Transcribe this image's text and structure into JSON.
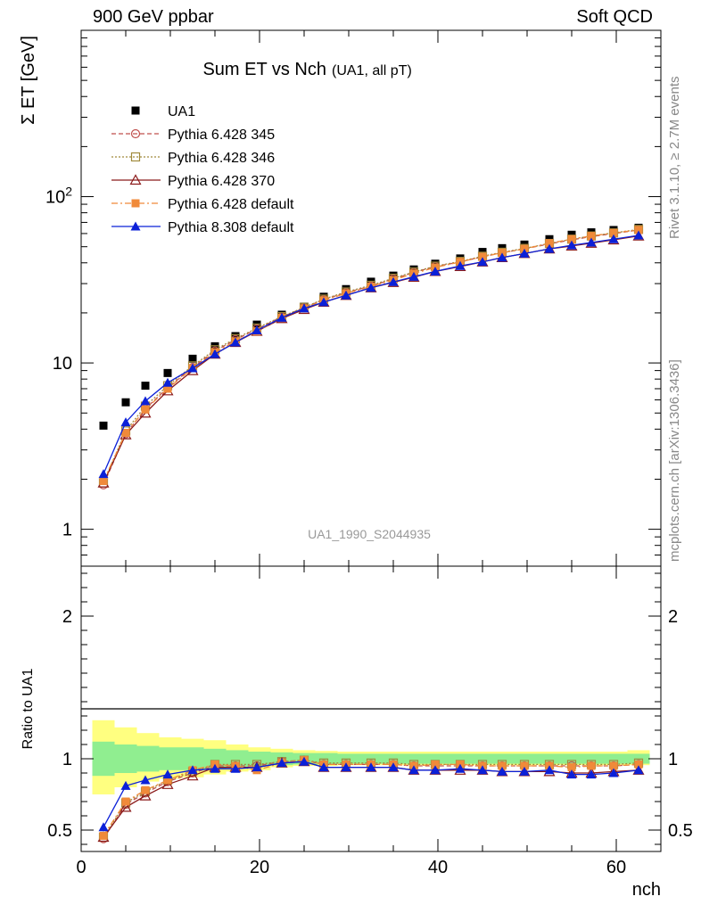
{
  "header": {
    "left_label": "900 GeV ppbar",
    "right_label": "Soft QCD"
  },
  "side_labels": {
    "rivet": "Rivet 3.1.10, ≥ 2.7M events",
    "mcplots": "mcplots.cern.ch [arXiv:1306.3436]"
  },
  "colors": {
    "UA1": "#000000",
    "p345": "#c0504d",
    "p346": "#a08a3c",
    "p370": "#8b1a1a",
    "pdef6": "#f08a3a",
    "pdef8": "#0b20d8",
    "band_green": "#90ee90",
    "band_yellow": "#ffff80"
  },
  "chart_data": [
    {
      "type": "scatter",
      "title": "Sum ET vs Nch",
      "title_suffix": "(UA1, all pT)",
      "ylabel": "Σ ET [GeV]",
      "watermark": "UA1_1990_S2044935",
      "yscale": "log",
      "xlim": [
        0,
        65
      ],
      "ylim": [
        0.6,
        1000
      ],
      "yticks": [
        1,
        10,
        100
      ],
      "ytick_labels": [
        "1",
        "10",
        "10²"
      ],
      "legend_position": "top-left",
      "x": [
        2.5,
        5,
        7.2,
        9.7,
        12.5,
        15,
        17.3,
        19.7,
        22.5,
        25,
        27.2,
        29.7,
        32.5,
        35,
        37.3,
        39.7,
        42.5,
        45,
        47.2,
        49.7,
        52.5,
        55,
        57.2,
        59.7,
        62.5
      ],
      "series": [
        {
          "name": "UA1",
          "marker": "square-filled",
          "line": "none",
          "color_key": "UA1",
          "values": [
            4.2,
            5.8,
            7.3,
            8.7,
            10.6,
            12.6,
            14.5,
            17.0,
            19.5,
            21.8,
            25.0,
            27.8,
            30.8,
            33.5,
            36.5,
            39.5,
            42.5,
            46.5,
            49.0,
            51.5,
            55.5,
            59.0,
            61.0,
            63.0,
            65.0
          ]
        },
        {
          "name": "Pythia 6.428 345",
          "marker": "circle-open",
          "line": "dashed",
          "color_key": "p345",
          "values": [
            1.85,
            3.75,
            5.3,
            7.1,
            9.4,
            11.8,
            13.8,
            16.0,
            18.9,
            21.5,
            24.0,
            26.5,
            29.0,
            32.0,
            35.0,
            38.0,
            40.5,
            43.5,
            46.0,
            48.5,
            52.0,
            55.0,
            57.5,
            60.0,
            63.0
          ]
        },
        {
          "name": "Pythia 6.428 346",
          "marker": "square-open",
          "line": "dotted",
          "color_key": "p346",
          "values": [
            1.9,
            3.9,
            5.5,
            7.3,
            9.6,
            12.0,
            14.0,
            16.2,
            19.0,
            21.6,
            24.2,
            26.7,
            29.3,
            32.3,
            35.2,
            38.2,
            40.8,
            43.8,
            46.3,
            48.8,
            52.3,
            55.5,
            58.0,
            60.5,
            63.5
          ]
        },
        {
          "name": "Pythia 6.428 370",
          "marker": "triangle-open",
          "line": "solid",
          "color_key": "p370",
          "values": [
            1.9,
            3.7,
            5.0,
            6.8,
            9.0,
            11.3,
            13.3,
            15.5,
            18.5,
            21.0,
            23.2,
            25.5,
            28.3,
            30.5,
            32.8,
            35.5,
            38.0,
            40.5,
            43.0,
            45.5,
            48.5,
            50.5,
            52.5,
            55.0,
            58.0
          ]
        },
        {
          "name": "Pythia 6.428 default",
          "marker": "square-filled",
          "line": "dashdot",
          "color_key": "pdef6",
          "values": [
            1.95,
            3.8,
            5.25,
            7.0,
            9.3,
            11.6,
            13.5,
            15.5,
            18.7,
            21.3,
            23.8,
            26.2,
            28.8,
            31.5,
            34.5,
            37.5,
            40.5,
            43.5,
            46.0,
            48.5,
            52.5,
            55.5,
            58.0,
            60.5,
            63.0
          ]
        },
        {
          "name": "Pythia 8.308 default",
          "marker": "triangle-filled",
          "line": "solid",
          "color_key": "pdef8",
          "values": [
            2.15,
            4.4,
            5.9,
            7.6,
            9.3,
            11.3,
            13.3,
            15.7,
            18.7,
            21.3,
            23.2,
            25.5,
            28.3,
            30.7,
            33.0,
            35.5,
            38.3,
            40.5,
            43.0,
            45.5,
            48.5,
            51.0,
            53.0,
            55.5,
            58.5
          ]
        }
      ]
    },
    {
      "type": "scatter",
      "ylabel": "Ratio to UA1",
      "xlabel": "nch",
      "xlim": [
        0,
        65
      ],
      "ylim": [
        0.35,
        2.35
      ],
      "yticks": [
        0.5,
        1,
        2
      ],
      "ytick_labels": [
        "0.5",
        "1",
        "2"
      ],
      "xticks": [
        0,
        20,
        40,
        60
      ],
      "xtick_labels": [
        "0",
        "20",
        "40",
        "60"
      ],
      "band_edges": [
        1.25,
        3.75,
        6.25,
        8.75,
        11.25,
        13.75,
        16.25,
        18.75,
        21.25,
        23.75,
        26.25,
        28.75,
        31.25,
        33.75,
        36.25,
        38.75,
        41.25,
        43.75,
        46.25,
        48.75,
        51.25,
        53.75,
        56.25,
        58.75,
        61.25,
        63.75
      ],
      "band_inner_lo": [
        0.88,
        0.9,
        0.91,
        0.92,
        0.92,
        0.93,
        0.94,
        0.95,
        0.955,
        0.96,
        0.96,
        0.965,
        0.965,
        0.965,
        0.965,
        0.965,
        0.965,
        0.965,
        0.965,
        0.965,
        0.965,
        0.965,
        0.965,
        0.965,
        0.965
      ],
      "band_inner_hi": [
        1.12,
        1.1,
        1.09,
        1.08,
        1.08,
        1.07,
        1.06,
        1.05,
        1.045,
        1.04,
        1.04,
        1.035,
        1.035,
        1.035,
        1.035,
        1.035,
        1.035,
        1.035,
        1.035,
        1.035,
        1.035,
        1.035,
        1.035,
        1.035,
        1.035
      ],
      "band_outer_lo": [
        0.75,
        0.8,
        0.84,
        0.86,
        0.87,
        0.89,
        0.91,
        0.92,
        0.94,
        0.95,
        0.95,
        0.955,
        0.955,
        0.955,
        0.955,
        0.955,
        0.955,
        0.955,
        0.955,
        0.955,
        0.955,
        0.955,
        0.955,
        0.955,
        0.955
      ],
      "band_outer_hi": [
        1.27,
        1.22,
        1.18,
        1.15,
        1.14,
        1.13,
        1.1,
        1.08,
        1.07,
        1.06,
        1.055,
        1.05,
        1.05,
        1.05,
        1.05,
        1.05,
        1.05,
        1.05,
        1.05,
        1.05,
        1.05,
        1.05,
        1.05,
        1.05,
        1.06
      ],
      "x": [
        2.5,
        5,
        7.2,
        9.7,
        12.5,
        15,
        17.3,
        19.7,
        22.5,
        25,
        27.2,
        29.7,
        32.5,
        35,
        37.3,
        39.7,
        42.5,
        45,
        47.2,
        49.7,
        52.5,
        55,
        57.2,
        59.7,
        62.5
      ],
      "series": [
        {
          "name": "Pythia 6.428 345",
          "marker": "circle-open",
          "line": "dashed",
          "color_key": "p345",
          "values": [
            0.44,
            0.68,
            0.76,
            0.84,
            0.9,
            0.95,
            0.95,
            0.95,
            0.98,
            0.99,
            0.96,
            0.96,
            0.96,
            0.96,
            0.95,
            0.95,
            0.95,
            0.95,
            0.95,
            0.95,
            0.95,
            0.95,
            0.95,
            0.95,
            0.96
          ]
        },
        {
          "name": "Pythia 6.428 346",
          "marker": "square-open",
          "line": "dotted",
          "color_key": "p346",
          "values": [
            0.45,
            0.69,
            0.77,
            0.85,
            0.91,
            0.96,
            0.96,
            0.96,
            0.98,
            0.99,
            0.97,
            0.97,
            0.97,
            0.97,
            0.96,
            0.96,
            0.96,
            0.96,
            0.96,
            0.96,
            0.96,
            0.96,
            0.96,
            0.96,
            0.97
          ]
        },
        {
          "name": "Pythia 6.428 370",
          "marker": "triangle-open",
          "line": "solid",
          "color_key": "p370",
          "values": [
            0.45,
            0.66,
            0.74,
            0.82,
            0.88,
            0.94,
            0.94,
            0.94,
            0.97,
            0.98,
            0.94,
            0.94,
            0.94,
            0.94,
            0.92,
            0.92,
            0.92,
            0.92,
            0.91,
            0.91,
            0.91,
            0.9,
            0.9,
            0.91,
            0.92
          ]
        },
        {
          "name": "Pythia 6.428 default",
          "marker": "square-filled",
          "line": "dashdot",
          "color_key": "pdef6",
          "values": [
            0.46,
            0.7,
            0.78,
            0.85,
            0.92,
            0.96,
            0.95,
            0.92,
            0.97,
            0.99,
            0.96,
            0.96,
            0.96,
            0.96,
            0.95,
            0.96,
            0.96,
            0.95,
            0.95,
            0.95,
            0.95,
            0.94,
            0.95,
            0.95,
            0.96
          ]
        },
        {
          "name": "Pythia 8.308 default",
          "marker": "triangle-filled",
          "line": "solid",
          "color_key": "pdef8",
          "values": [
            0.52,
            0.81,
            0.85,
            0.89,
            0.92,
            0.93,
            0.93,
            0.94,
            0.97,
            0.98,
            0.94,
            0.94,
            0.94,
            0.94,
            0.92,
            0.92,
            0.93,
            0.92,
            0.91,
            0.91,
            0.92,
            0.89,
            0.89,
            0.9,
            0.92
          ]
        }
      ]
    }
  ]
}
